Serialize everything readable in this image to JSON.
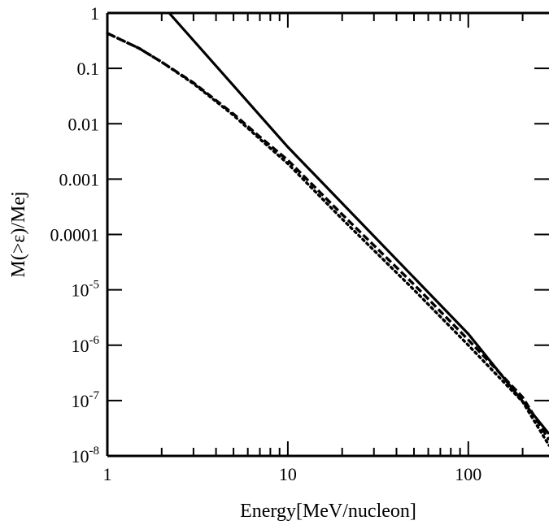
{
  "chart_data": {
    "type": "line",
    "xlabel": "Energy[MeV/nucleon]",
    "ylabel": "M(>ε)/Mej",
    "xscale": "log",
    "yscale": "log",
    "xlim": [
      1,
      280
    ],
    "ylim": [
      1e-08,
      1
    ],
    "grid": false,
    "x_ticks": [
      {
        "value": 1,
        "label": "1"
      },
      {
        "value": 10,
        "label": "10"
      },
      {
        "value": 100,
        "label": "100"
      }
    ],
    "y_ticks": [
      {
        "value": 1,
        "base": "1",
        "exp": ""
      },
      {
        "value": 0.1,
        "base": "0.1",
        "exp": ""
      },
      {
        "value": 0.01,
        "base": "0.01",
        "exp": ""
      },
      {
        "value": 0.001,
        "base": "0.001",
        "exp": ""
      },
      {
        "value": 0.0001,
        "base": "0.0001",
        "exp": ""
      },
      {
        "value": 1e-05,
        "base": "10",
        "exp": "-5"
      },
      {
        "value": 1e-06,
        "base": "10",
        "exp": "-6"
      },
      {
        "value": 1e-07,
        "base": "10",
        "exp": "-7"
      },
      {
        "value": 1e-08,
        "base": "10",
        "exp": "-8"
      }
    ],
    "series": [
      {
        "style": "solid",
        "x": [
          2.2,
          10,
          100,
          280
        ],
        "y": [
          1,
          0.0038,
          1.6e-06,
          2.5e-08
        ]
      },
      {
        "style": "dashed",
        "x": [
          1,
          1.5,
          2,
          3,
          5,
          7,
          10,
          20,
          50,
          100,
          200,
          280
        ],
        "y": [
          0.43,
          0.23,
          0.13,
          0.055,
          0.015,
          0.0058,
          0.0022,
          0.00023,
          1.25e-05,
          1.25e-06,
          1.15e-07,
          1.95e-08
        ]
      },
      {
        "style": "dotted",
        "x": [
          1,
          1.5,
          2,
          3,
          5,
          7,
          10,
          20,
          50,
          100,
          200,
          280
        ],
        "y": [
          0.43,
          0.23,
          0.13,
          0.053,
          0.0142,
          0.0053,
          0.0019,
          0.00019,
          1e-05,
          1e-06,
          9.5e-08,
          1.55e-08
        ]
      }
    ]
  }
}
